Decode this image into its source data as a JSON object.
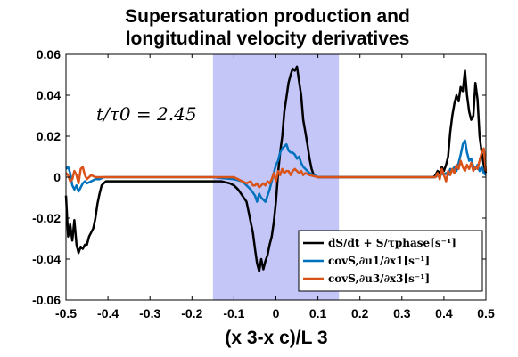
{
  "chart_data": {
    "type": "line",
    "title": [
      "Supersaturation production and",
      "longitudinal velocity derivatives"
    ],
    "xlabel": "(x 3-x c)/L 3",
    "ylabel": "",
    "xlim": [
      -0.5,
      0.5
    ],
    "ylim": [
      -0.06,
      0.06
    ],
    "xticks": [
      -0.5,
      -0.4,
      -0.3,
      -0.2,
      -0.1,
      0,
      0.1,
      0.2,
      0.3,
      0.4,
      0.5
    ],
    "xtick_labels": [
      "-0.5",
      "-0.4",
      "-0.3",
      "-0.2",
      "-0.1",
      "0",
      "0.1",
      "0.2",
      "0.3",
      "0.4",
      "0.5"
    ],
    "yticks": [
      -0.06,
      -0.04,
      -0.02,
      0,
      0.02,
      0.04,
      0.06
    ],
    "ytick_labels": [
      "-0.06",
      "-0.04",
      "-0.02",
      "0",
      "0.02",
      "0.04",
      "0.06"
    ],
    "grid": false,
    "legend_position": "bottom-right",
    "annotation": "t/τ0 = 2.45",
    "shaded_region": {
      "x": [
        -0.15,
        0.15
      ],
      "color": "#c4c6f8"
    },
    "series": [
      {
        "name": "dS/dt + S/τphase[s⁻¹]",
        "color": "#000000",
        "x": [
          -0.5,
          -0.495,
          -0.49,
          -0.485,
          -0.48,
          -0.475,
          -0.47,
          -0.465,
          -0.46,
          -0.455,
          -0.45,
          -0.445,
          -0.44,
          -0.435,
          -0.43,
          -0.425,
          -0.42,
          -0.415,
          -0.41,
          -0.405,
          -0.4,
          -0.39,
          -0.38,
          -0.36,
          -0.3,
          -0.2,
          -0.15,
          -0.13,
          -0.11,
          -0.1,
          -0.09,
          -0.08,
          -0.07,
          -0.065,
          -0.06,
          -0.055,
          -0.05,
          -0.045,
          -0.04,
          -0.035,
          -0.03,
          -0.025,
          -0.02,
          -0.015,
          -0.01,
          -0.005,
          0,
          0.005,
          0.01,
          0.015,
          0.02,
          0.025,
          0.03,
          0.035,
          0.04,
          0.045,
          0.05,
          0.055,
          0.06,
          0.065,
          0.07,
          0.075,
          0.08,
          0.085,
          0.09,
          0.1,
          0.12,
          0.15,
          0.2,
          0.3,
          0.37,
          0.375,
          0.38,
          0.385,
          0.39,
          0.395,
          0.4,
          0.405,
          0.41,
          0.415,
          0.42,
          0.425,
          0.43,
          0.435,
          0.44,
          0.445,
          0.45,
          0.455,
          0.46,
          0.465,
          0.47,
          0.475,
          0.48,
          0.485,
          0.49,
          0.495,
          0.5
        ],
        "values": [
          -0.009,
          -0.029,
          -0.023,
          -0.031,
          -0.021,
          -0.033,
          -0.037,
          -0.034,
          -0.035,
          -0.033,
          -0.033,
          -0.029,
          -0.027,
          -0.025,
          -0.02,
          -0.013,
          -0.008,
          -0.004,
          -0.003,
          -0.002,
          -0.002,
          -0.002,
          -0.002,
          -0.002,
          -0.002,
          -0.002,
          -0.002,
          -0.002,
          -0.003,
          -0.004,
          -0.006,
          -0.009,
          -0.012,
          -0.017,
          -0.022,
          -0.027,
          -0.035,
          -0.042,
          -0.046,
          -0.04,
          -0.045,
          -0.041,
          -0.038,
          -0.033,
          -0.029,
          -0.022,
          -0.012,
          0.002,
          0.012,
          0.02,
          0.032,
          0.039,
          0.046,
          0.05,
          0.053,
          0.052,
          0.054,
          0.047,
          0.04,
          0.028,
          0.022,
          0.016,
          0.009,
          0.004,
          0.001,
          0,
          0,
          0,
          0,
          0,
          0,
          0,
          0.001,
          0.003,
          0.002,
          0.005,
          0.003,
          0.006,
          0.01,
          0.022,
          0.03,
          0.036,
          0.04,
          0.037,
          0.044,
          0.042,
          0.052,
          0.04,
          0.032,
          0.028,
          0.03,
          0.046,
          0.038,
          0.02,
          0.012,
          0.006,
          0.002
        ]
      },
      {
        "name": "covS,∂u1/∂x1[s⁻¹]",
        "color": "#0072bd",
        "x": [
          -0.5,
          -0.495,
          -0.49,
          -0.485,
          -0.48,
          -0.475,
          -0.47,
          -0.465,
          -0.46,
          -0.455,
          -0.45,
          -0.44,
          -0.43,
          -0.42,
          -0.41,
          -0.4,
          -0.38,
          -0.3,
          -0.2,
          -0.15,
          -0.1,
          -0.08,
          -0.07,
          -0.06,
          -0.05,
          -0.045,
          -0.04,
          -0.035,
          -0.03,
          -0.025,
          -0.02,
          -0.015,
          -0.01,
          -0.005,
          0,
          0.005,
          0.01,
          0.015,
          0.02,
          0.025,
          0.03,
          0.035,
          0.04,
          0.045,
          0.05,
          0.055,
          0.06,
          0.065,
          0.07,
          0.075,
          0.08,
          0.09,
          0.1,
          0.15,
          0.2,
          0.3,
          0.37,
          0.38,
          0.385,
          0.39,
          0.395,
          0.4,
          0.405,
          0.41,
          0.415,
          0.42,
          0.425,
          0.43,
          0.435,
          0.44,
          0.445,
          0.45,
          0.455,
          0.46,
          0.465,
          0.47,
          0.475,
          0.48,
          0.485,
          0.49,
          0.495,
          0.5
        ],
        "values": [
          0.004,
          0.005,
          0.002,
          -0.004,
          -0.006,
          -0.004,
          -0.007,
          -0.005,
          -0.003,
          -0.002,
          -0.003,
          -0.002,
          -0.001,
          -0.001,
          0,
          0,
          0,
          0,
          0,
          0,
          -0.001,
          -0.002,
          -0.004,
          -0.006,
          -0.009,
          -0.012,
          -0.008,
          -0.01,
          -0.011,
          -0.012,
          -0.009,
          -0.006,
          -0.002,
          0.002,
          0.006,
          0.008,
          0.012,
          0.014,
          0.015,
          0.016,
          0.013,
          0.012,
          0.012,
          0.011,
          0.009,
          0.01,
          0.007,
          0.005,
          0.004,
          0.003,
          0.002,
          0.001,
          0,
          0,
          0,
          0,
          0,
          0,
          0.001,
          0,
          0.002,
          0.001,
          0.002,
          0.001,
          0.004,
          0.003,
          0.005,
          0.003,
          0.007,
          0.011,
          0.016,
          0.018,
          0.012,
          0.008,
          0.009,
          0.005,
          0.004,
          0.006,
          0.003,
          0.005,
          0.002,
          0.001
        ]
      },
      {
        "name": "covS,∂u3/∂x3[s⁻¹]",
        "color": "#d95319",
        "x": [
          -0.5,
          -0.495,
          -0.49,
          -0.485,
          -0.48,
          -0.475,
          -0.47,
          -0.465,
          -0.46,
          -0.455,
          -0.45,
          -0.44,
          -0.43,
          -0.42,
          -0.4,
          -0.3,
          -0.2,
          -0.15,
          -0.1,
          -0.09,
          -0.08,
          -0.07,
          -0.06,
          -0.055,
          -0.05,
          -0.045,
          -0.04,
          -0.035,
          -0.03,
          -0.025,
          -0.02,
          -0.015,
          -0.01,
          -0.005,
          0,
          0.005,
          0.01,
          0.015,
          0.02,
          0.025,
          0.03,
          0.035,
          0.04,
          0.045,
          0.05,
          0.055,
          0.06,
          0.065,
          0.07,
          0.08,
          0.1,
          0.15,
          0.2,
          0.3,
          0.37,
          0.38,
          0.385,
          0.39,
          0.395,
          0.4,
          0.405,
          0.41,
          0.415,
          0.42,
          0.425,
          0.43,
          0.435,
          0.44,
          0.445,
          0.45,
          0.455,
          0.46,
          0.465,
          0.47,
          0.475,
          0.48,
          0.485,
          0.49,
          0.495,
          0.5
        ],
        "values": [
          0.002,
          0.001,
          -0.002,
          -0.001,
          0.003,
          0.001,
          -0.003,
          0.004,
          0.005,
          0.001,
          -0.001,
          0.001,
          0,
          0,
          0,
          0,
          0,
          0,
          0,
          -0.001,
          -0.002,
          -0.003,
          -0.002,
          -0.004,
          -0.004,
          -0.003,
          -0.005,
          -0.004,
          -0.003,
          -0.004,
          -0.002,
          -0.003,
          -0.001,
          0.002,
          -0.002,
          0.003,
          0.001,
          0.004,
          0.002,
          0.003,
          0.003,
          0.001,
          0.003,
          0.004,
          0.003,
          0.002,
          0.003,
          0.001,
          0.002,
          0.001,
          0,
          0,
          0,
          0,
          0,
          0,
          0.002,
          -0.001,
          0.004,
          0.001,
          -0.002,
          0.003,
          0.001,
          0.004,
          0.002,
          0.006,
          0.004,
          0.008,
          0.005,
          0.003,
          0.006,
          0.004,
          0.007,
          0.003,
          0.005,
          0.004,
          0.008,
          0.012,
          0.014,
          0.003
        ]
      }
    ]
  }
}
